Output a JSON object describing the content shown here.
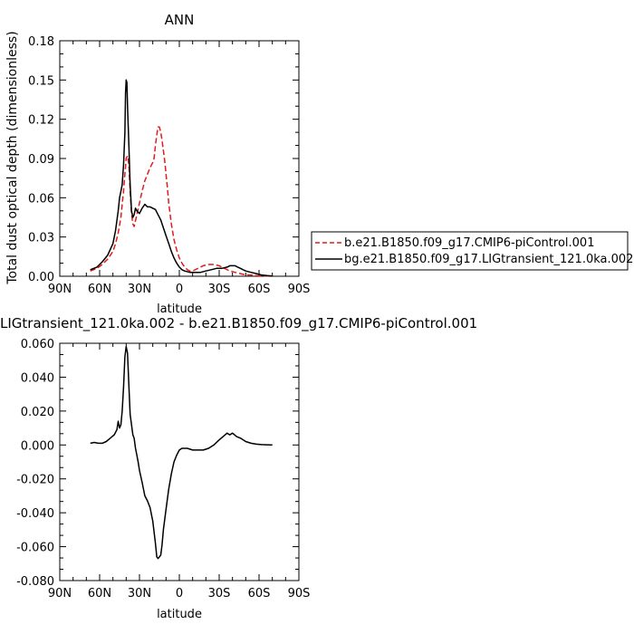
{
  "chart_data": [
    {
      "type": "line",
      "title": "ANN",
      "xlabel": "latitude",
      "ylabel": "Total dust optical depth (dimensionless)",
      "xlim": [
        90,
        -90
      ],
      "ylim": [
        0,
        0.18
      ],
      "xticks": [
        90,
        60,
        30,
        0,
        -30,
        -60,
        -90
      ],
      "xtick_labels": [
        "90N",
        "60N",
        "30N",
        "0",
        "30S",
        "60S",
        "90S"
      ],
      "yticks": [
        0,
        0.03,
        0.06,
        0.09,
        0.12,
        0.15,
        0.18
      ],
      "ytick_labels": [
        "0.00",
        "0.03",
        "0.06",
        "0.09",
        "0.12",
        "0.15",
        "0.18"
      ],
      "legend_position": "right",
      "series": [
        {
          "name": "b.e21.B1850.f09_g17.CMIP6-piControl.001",
          "color": "#e41a1c",
          "style": "dashed",
          "x": [
            67,
            62,
            58,
            54,
            50,
            48,
            46,
            44,
            43,
            42,
            41,
            40,
            39,
            38,
            37,
            36,
            35,
            34,
            32,
            30,
            28,
            26,
            24,
            22,
            21,
            20,
            19,
            18,
            17,
            16,
            15,
            14,
            13,
            12,
            11,
            10,
            9,
            8,
            6,
            4,
            2,
            0,
            -2,
            -4,
            -6,
            -8,
            -10,
            -14,
            -18,
            -22,
            -26,
            -30,
            -34,
            -38,
            -42,
            -46,
            -50,
            -54,
            -58,
            -62,
            -66,
            -70
          ],
          "y": [
            0.004,
            0.006,
            0.009,
            0.013,
            0.019,
            0.025,
            0.033,
            0.045,
            0.055,
            0.065,
            0.078,
            0.09,
            0.092,
            0.085,
            0.065,
            0.048,
            0.04,
            0.038,
            0.047,
            0.056,
            0.065,
            0.073,
            0.078,
            0.083,
            0.085,
            0.087,
            0.09,
            0.1,
            0.108,
            0.114,
            0.114,
            0.11,
            0.104,
            0.096,
            0.088,
            0.078,
            0.068,
            0.056,
            0.04,
            0.028,
            0.02,
            0.014,
            0.01,
            0.007,
            0.005,
            0.004,
            0.004,
            0.006,
            0.008,
            0.009,
            0.009,
            0.008,
            0.006,
            0.004,
            0.003,
            0.002,
            0.001,
            0.001,
            0.0005,
            0.0003,
            0.0002,
            0.0001
          ]
        },
        {
          "name": "bg.e21.B1850.f09_g17.LIGtransient_121.0ka.002",
          "color": "#000000",
          "style": "solid",
          "x": [
            67,
            62,
            58,
            54,
            50,
            48,
            46,
            45,
            44,
            43,
            42,
            41,
            40.5,
            40,
            39.5,
            39,
            38,
            37,
            36,
            35,
            34,
            33,
            32,
            30,
            28,
            26,
            24,
            22,
            20,
            18,
            16,
            14,
            12,
            10,
            8,
            6,
            4,
            2,
            0,
            -2,
            -4,
            -8,
            -12,
            -16,
            -20,
            -24,
            -28,
            -32,
            -36,
            -38,
            -40,
            -42,
            -44,
            -46,
            -48,
            -50,
            -54,
            -58,
            -62,
            -66,
            -70
          ],
          "y": [
            0.005,
            0.007,
            0.011,
            0.016,
            0.025,
            0.035,
            0.05,
            0.06,
            0.065,
            0.07,
            0.085,
            0.11,
            0.14,
            0.15,
            0.148,
            0.13,
            0.1,
            0.07,
            0.05,
            0.045,
            0.047,
            0.052,
            0.05,
            0.048,
            0.052,
            0.055,
            0.053,
            0.053,
            0.052,
            0.051,
            0.047,
            0.043,
            0.037,
            0.031,
            0.025,
            0.019,
            0.014,
            0.01,
            0.007,
            0.005,
            0.004,
            0.003,
            0.003,
            0.003,
            0.004,
            0.005,
            0.006,
            0.006,
            0.007,
            0.008,
            0.008,
            0.008,
            0.007,
            0.006,
            0.005,
            0.004,
            0.003,
            0.002,
            0.001,
            0.0005,
            0.0002
          ]
        }
      ]
    },
    {
      "type": "line",
      "title": "LIGtransient_121.0ka.002 - b.e21.B1850.f09_g17.CMIP6-piControl.001",
      "xlabel": "latitude",
      "ylabel": "",
      "xlim": [
        90,
        -90
      ],
      "ylim": [
        -0.08,
        0.06
      ],
      "xticks": [
        90,
        60,
        30,
        0,
        -30,
        -60,
        -90
      ],
      "xtick_labels": [
        "90N",
        "60N",
        "30N",
        "0",
        "30S",
        "60S",
        "90S"
      ],
      "yticks": [
        -0.08,
        -0.06,
        -0.04,
        -0.02,
        0,
        0.02,
        0.04,
        0.06
      ],
      "ytick_labels": [
        "-0.080",
        "-0.060",
        "-0.040",
        "-0.020",
        "0.000",
        "0.020",
        "0.040",
        "0.060"
      ],
      "series": [
        {
          "color": "#000000",
          "style": "solid",
          "x": [
            67,
            64,
            61,
            58,
            55,
            52,
            49,
            47,
            46,
            45,
            44,
            43,
            42,
            41,
            40,
            39,
            38,
            37,
            36,
            35,
            34,
            33,
            32,
            31,
            30,
            28,
            26,
            24,
            22,
            20,
            18,
            17,
            16,
            15,
            14,
            13,
            12,
            10,
            8,
            6,
            4,
            2,
            0,
            -2,
            -4,
            -6,
            -10,
            -14,
            -18,
            -22,
            -26,
            -30,
            -33,
            -36,
            -38,
            -40,
            -43,
            -46,
            -50,
            -54,
            -58,
            -62,
            -66,
            -70
          ],
          "y": [
            0.001,
            0.0015,
            0.001,
            0.001,
            0.002,
            0.004,
            0.006,
            0.009,
            0.014,
            0.01,
            0.012,
            0.02,
            0.034,
            0.052,
            0.058,
            0.054,
            0.035,
            0.018,
            0.012,
            0.006,
            0.004,
            -0.002,
            -0.006,
            -0.01,
            -0.015,
            -0.022,
            -0.03,
            -0.033,
            -0.037,
            -0.045,
            -0.058,
            -0.066,
            -0.067,
            -0.066,
            -0.065,
            -0.059,
            -0.05,
            -0.038,
            -0.026,
            -0.017,
            -0.01,
            -0.006,
            -0.003,
            -0.002,
            -0.002,
            -0.002,
            -0.003,
            -0.003,
            -0.003,
            -0.002,
            0,
            0.003,
            0.005,
            0.007,
            0.006,
            0.007,
            0.005,
            0.004,
            0.002,
            0.001,
            0.0005,
            0.0002,
            0.0001,
            0
          ]
        }
      ]
    }
  ]
}
